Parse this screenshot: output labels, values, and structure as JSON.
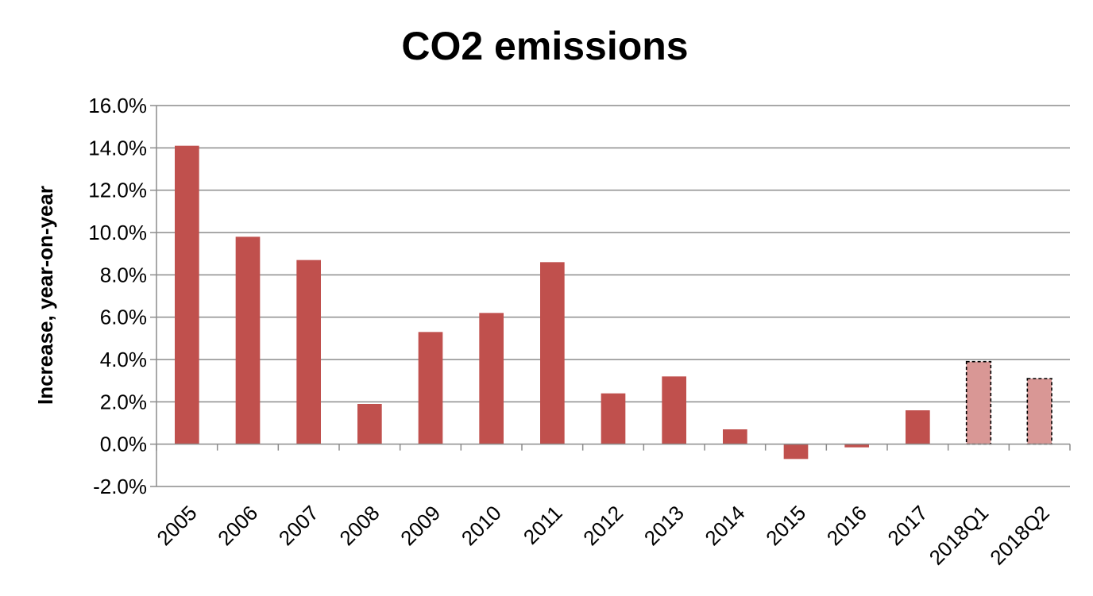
{
  "chart_data": {
    "type": "bar",
    "title": "CO2 emissions",
    "xlabel": "",
    "ylabel": "Increase, year-on-year",
    "categories": [
      "2005",
      "2006",
      "2007",
      "2008",
      "2009",
      "2010",
      "2011",
      "2012",
      "2013",
      "2014",
      "2015",
      "2016",
      "2017",
      "2018Q1",
      "2018Q2"
    ],
    "values": [
      14.1,
      9.8,
      8.7,
      1.9,
      5.3,
      6.2,
      8.6,
      2.4,
      3.2,
      0.7,
      -0.7,
      -0.15,
      1.6,
      3.9,
      3.1
    ],
    "projected": [
      false,
      false,
      false,
      false,
      false,
      false,
      false,
      false,
      false,
      false,
      false,
      false,
      false,
      true,
      true
    ],
    "ylim": [
      -2.0,
      16.0
    ],
    "yticks": [
      -2.0,
      0.0,
      2.0,
      4.0,
      6.0,
      8.0,
      10.0,
      12.0,
      14.0,
      16.0
    ],
    "ytick_labels": [
      "-2.0%",
      "0.0%",
      "2.0%",
      "4.0%",
      "6.0%",
      "8.0%",
      "10.0%",
      "12.0%",
      "14.0%",
      "16.0%"
    ],
    "grid": true,
    "legend": "none",
    "colors": {
      "bar": "#c0504d",
      "projected_bar": "#d99795",
      "projected_border": "#000000",
      "grid": "#8c8c8c"
    }
  }
}
